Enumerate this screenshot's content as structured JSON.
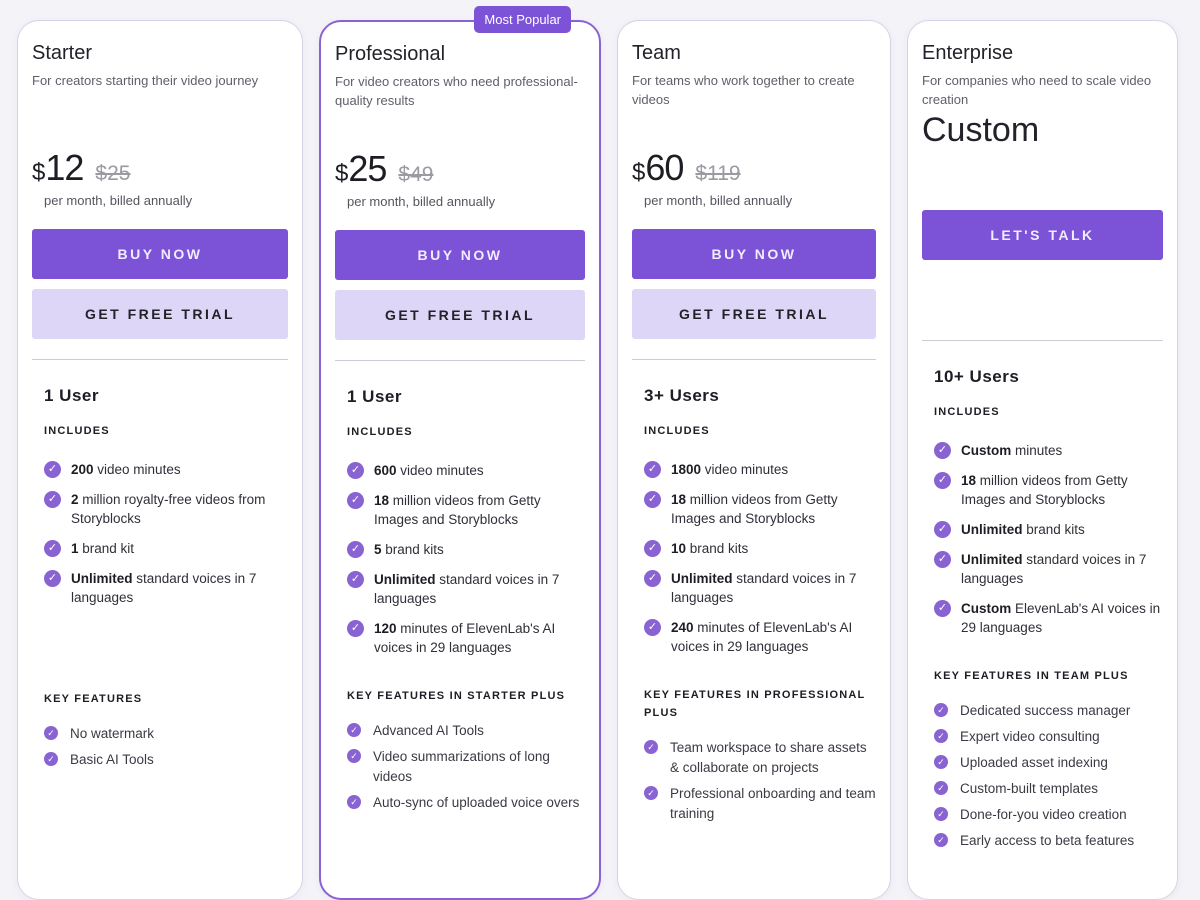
{
  "accent": "#7c53d6",
  "plans": [
    {
      "name": "Starter",
      "desc": "For creators starting their video journey",
      "currency": "$",
      "price": "12",
      "old": "$25",
      "per": "per month, billed annually",
      "buy": "BUY NOW",
      "trial": "GET FREE TRIAL",
      "users": "1 User",
      "includes": "INCLUDES",
      "items": [
        {
          "b": "200",
          "t": " video minutes"
        },
        {
          "b": "2",
          "t": " million royalty-free videos from Storyblocks"
        },
        {
          "b": "1",
          "t": " brand kit"
        },
        {
          "b": "Unlimited",
          "t": " standard voices in 7 languages"
        }
      ],
      "kf_title": "KEY FEATURES",
      "kf": [
        "No watermark",
        "Basic AI Tools"
      ]
    },
    {
      "name": "Professional",
      "badge": "Most Popular",
      "desc": "For video creators who need professional-quality results",
      "currency": "$",
      "price": "25",
      "old": "$49",
      "per": "per month, billed annually",
      "buy": "BUY NOW",
      "trial": "GET FREE TRIAL",
      "users": "1 User",
      "includes": "INCLUDES",
      "items": [
        {
          "b": "600",
          "t": " video minutes"
        },
        {
          "b": "18",
          "t": " million videos from Getty Images and Storyblocks"
        },
        {
          "b": "5",
          "t": " brand kits"
        },
        {
          "b": "Unlimited",
          "t": " standard voices in 7 languages"
        },
        {
          "b": "120",
          "t": " minutes of ElevenLab's AI voices in 29 languages"
        }
      ],
      "kf_title": "KEY FEATURES IN STARTER PLUS",
      "kf": [
        "Advanced AI Tools",
        "Video summarizations of long videos",
        "Auto-sync of uploaded voice overs"
      ]
    },
    {
      "name": "Team",
      "desc": "For teams who work together to create videos",
      "currency": "$",
      "price": "60",
      "old": "$119",
      "per": "per month, billed annually",
      "buy": "BUY NOW",
      "trial": "GET FREE TRIAL",
      "users": "3+ Users",
      "includes": "INCLUDES",
      "items": [
        {
          "b": "1800",
          "t": " video minutes"
        },
        {
          "b": "18",
          "t": " million videos from Getty Images and Storyblocks"
        },
        {
          "b": "10",
          "t": " brand kits"
        },
        {
          "b": "Unlimited",
          "t": " standard voices in 7 languages"
        },
        {
          "b": "240",
          "t": " minutes of ElevenLab's AI voices in 29 languages"
        }
      ],
      "kf_title": "KEY FEATURES IN PROFESSIONAL PLUS",
      "kf": [
        "Team workspace to share assets & collaborate on projects",
        "Professional onboarding and team training"
      ]
    },
    {
      "name": "Enterprise",
      "desc": "For companies who need to scale video creation",
      "custom": "Custom",
      "buy": "LET'S TALK",
      "users": "10+ Users",
      "includes": "INCLUDES",
      "items": [
        {
          "b": "Custom",
          "t": " minutes"
        },
        {
          "b": "18",
          "t": " million videos from Getty Images and Storyblocks"
        },
        {
          "b": "Unlimited",
          "t": " brand kits"
        },
        {
          "b": "Unlimited",
          "t": " standard voices in 7 languages"
        },
        {
          "b": "Custom",
          "t": " ElevenLab's AI voices in 29 languages"
        }
      ],
      "kf_title": "KEY FEATURES IN TEAM PLUS",
      "kf": [
        "Dedicated success manager",
        "Expert video consulting",
        "Uploaded asset indexing",
        "Custom-built templates",
        "Done-for-you video creation",
        "Early access to beta features"
      ]
    }
  ]
}
